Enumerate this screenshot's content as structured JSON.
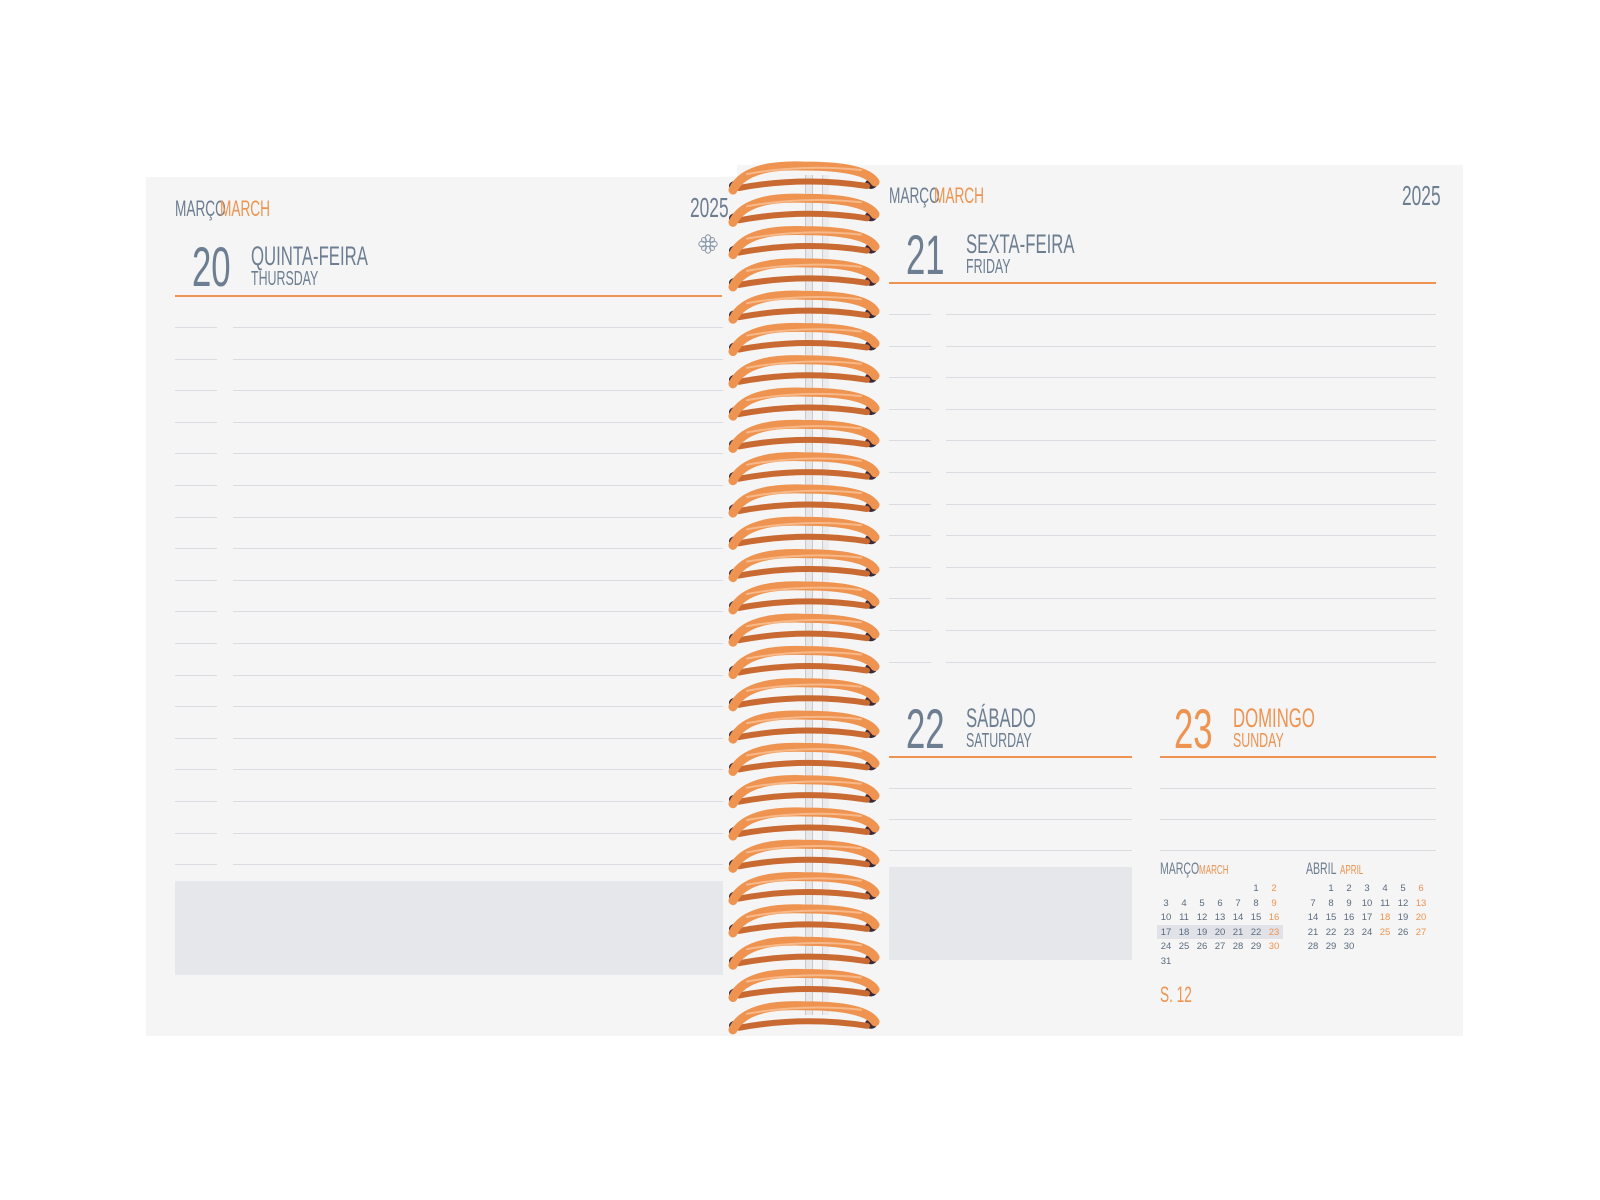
{
  "left_page": {
    "month_pt": "MARÇO",
    "month_en": "MARCH",
    "year": "2025",
    "icon": "flower-icon",
    "day": {
      "number": "20",
      "name_pt": "QUINTA-FEIRA",
      "name_en": "THURSDAY"
    }
  },
  "right_page": {
    "month_pt": "MARÇO",
    "month_en": "MARCH",
    "year": "2025",
    "friday": {
      "number": "21",
      "name_pt": "SEXTA-FEIRA",
      "name_en": "FRIDAY"
    },
    "saturday": {
      "number": "22",
      "name_pt": "SÁBADO",
      "name_en": "SATURDAY"
    },
    "sunday": {
      "number": "23",
      "name_pt": "DOMINGO",
      "name_en": "SUNDAY"
    },
    "week_label": "S. 12"
  },
  "mini_calendars": [
    {
      "month_pt": "MARÇO",
      "month_en": "MARCH",
      "weeks": [
        [
          "",
          "",
          "",
          "",
          "",
          "1",
          "2"
        ],
        [
          "3",
          "4",
          "5",
          "6",
          "7",
          "8",
          "9"
        ],
        [
          "10",
          "11",
          "12",
          "13",
          "14",
          "15",
          "16"
        ],
        [
          "17",
          "18",
          "19",
          "20",
          "21",
          "22",
          "23"
        ],
        [
          "24",
          "25",
          "26",
          "27",
          "28",
          "29",
          "30"
        ],
        [
          "31",
          "",
          "",
          "",
          "",
          "",
          ""
        ]
      ],
      "highlight_week": 3,
      "orange_days": [
        "2",
        "9",
        "16",
        "23",
        "30"
      ]
    },
    {
      "month_pt": "ABRIL",
      "month_en": "APRIL",
      "weeks": [
        [
          "",
          "1",
          "2",
          "3",
          "4",
          "5",
          "6"
        ],
        [
          "7",
          "8",
          "9",
          "10",
          "11",
          "12",
          "13"
        ],
        [
          "14",
          "15",
          "16",
          "17",
          "18",
          "19",
          "20"
        ],
        [
          "21",
          "22",
          "23",
          "24",
          "25",
          "26",
          "27"
        ],
        [
          "28",
          "29",
          "30",
          "",
          "",
          "",
          ""
        ]
      ],
      "highlight_week": -1,
      "orange_days": [
        "6",
        "13",
        "18",
        "20",
        "25",
        "27"
      ]
    }
  ],
  "colors": {
    "accent": "#ee9350",
    "text": "#6d7e92",
    "page": "#f4f5f4",
    "note": "#e6e7ea",
    "line": "#d9dde2"
  }
}
